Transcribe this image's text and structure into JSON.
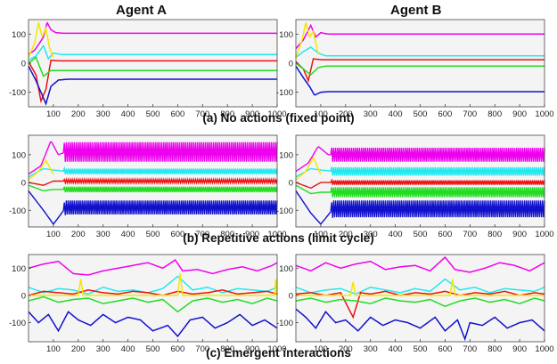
{
  "figure": {
    "columns": [
      "Agent A",
      "Agent B"
    ],
    "captions": [
      "(a) No actions (fixed point)",
      "(b) Repetitive actions (limit cycle)",
      "(c) Emergent interactions"
    ]
  },
  "colors": {
    "magenta": "#ee00ee",
    "cyan": "#22e8f0",
    "red": "#ee1111",
    "green": "#22dd22",
    "blue": "#1111cc",
    "yellow": "#f5e600"
  },
  "chart_data": [
    {
      "type": "line",
      "panel": "a",
      "agent": "Agent A",
      "xlim": [
        0,
        1000
      ],
      "ylim": [
        -150,
        150
      ],
      "xticks": [
        100,
        200,
        300,
        400,
        500,
        600,
        700,
        800,
        900,
        1000
      ],
      "yticks": [
        100,
        0,
        -100
      ],
      "series": [
        {
          "color": "magenta",
          "x": [
            0,
            25,
            45,
            60,
            75,
            90,
            110,
            140,
            1000
          ],
          "y": [
            30,
            45,
            70,
            90,
            140,
            115,
            105,
            103,
            103
          ]
        },
        {
          "color": "cyan",
          "x": [
            0,
            30,
            60,
            80,
            100,
            130,
            1000
          ],
          "y": [
            10,
            25,
            60,
            15,
            35,
            30,
            30
          ]
        },
        {
          "color": "red",
          "x": [
            0,
            30,
            50,
            70,
            90,
            120,
            1000
          ],
          "y": [
            5,
            -40,
            -130,
            -90,
            10,
            8,
            8
          ]
        },
        {
          "color": "green",
          "x": [
            0,
            30,
            60,
            90,
            120,
            1000
          ],
          "y": [
            0,
            20,
            -45,
            -25,
            -25,
            -25
          ]
        },
        {
          "color": "blue",
          "x": [
            0,
            30,
            55,
            70,
            90,
            120,
            160,
            1000
          ],
          "y": [
            -10,
            -60,
            -110,
            -140,
            -80,
            -58,
            -55,
            -55
          ]
        },
        {
          "color": "yellow",
          "x": [
            0,
            25,
            40,
            55,
            70,
            85,
            100
          ],
          "y": [
            20,
            70,
            140,
            90,
            120,
            50,
            20
          ]
        }
      ]
    },
    {
      "type": "line",
      "panel": "a",
      "agent": "Agent B",
      "xlim": [
        0,
        1000
      ],
      "ylim": [
        -150,
        150
      ],
      "xticks": [
        100,
        200,
        300,
        400,
        500,
        600,
        700,
        800,
        900,
        1000
      ],
      "yticks": [
        100,
        0,
        -100
      ],
      "series": [
        {
          "color": "magenta",
          "x": [
            0,
            30,
            60,
            80,
            100,
            130,
            1000
          ],
          "y": [
            50,
            80,
            130,
            90,
            105,
            100,
            100
          ]
        },
        {
          "color": "cyan",
          "x": [
            0,
            30,
            60,
            90,
            120,
            1000
          ],
          "y": [
            20,
            40,
            55,
            35,
            25,
            25
          ]
        },
        {
          "color": "red",
          "x": [
            0,
            30,
            50,
            70,
            100,
            1000
          ],
          "y": [
            5,
            -20,
            -60,
            15,
            12,
            12
          ]
        },
        {
          "color": "green",
          "x": [
            0,
            30,
            60,
            90,
            120,
            1000
          ],
          "y": [
            0,
            -20,
            -40,
            -15,
            -10,
            -10
          ]
        },
        {
          "color": "blue",
          "x": [
            0,
            30,
            55,
            75,
            100,
            130,
            1000
          ],
          "y": [
            -10,
            -50,
            -80,
            -110,
            -100,
            -98,
            -98
          ]
        },
        {
          "color": "yellow",
          "x": [
            0,
            25,
            40,
            55,
            70,
            90
          ],
          "y": [
            20,
            80,
            140,
            90,
            110,
            30
          ]
        }
      ]
    },
    {
      "type": "line",
      "panel": "b",
      "agent": "Agent A",
      "xlim": [
        0,
        1000
      ],
      "ylim": [
        -160,
        170
      ],
      "xticks": [
        100,
        200,
        300,
        400,
        500,
        600,
        700,
        800,
        900,
        1000
      ],
      "yticks": [
        100,
        0,
        -100
      ],
      "series": [
        {
          "color": "magenta",
          "x": [
            0,
            50,
            90,
            120,
            150,
            1000
          ],
          "y": [
            30,
            60,
            150,
            100,
            110,
            110
          ],
          "oscillation_amplitude": 35
        },
        {
          "color": "cyan",
          "x": [
            0,
            60,
            100,
            150,
            1000
          ],
          "y": [
            20,
            50,
            45,
            40,
            40
          ],
          "oscillation_amplitude": 10
        },
        {
          "color": "red",
          "x": [
            0,
            60,
            100,
            150,
            1000
          ],
          "y": [
            0,
            -10,
            5,
            5,
            5
          ],
          "oscillation_amplitude": 6
        },
        {
          "color": "green",
          "x": [
            0,
            60,
            100,
            150,
            1000
          ],
          "y": [
            -10,
            -30,
            -25,
            -25,
            -25
          ],
          "oscillation_amplitude": 10
        },
        {
          "color": "blue",
          "x": [
            0,
            60,
            100,
            150,
            1000
          ],
          "y": [
            -30,
            -100,
            -150,
            -90,
            -90
          ],
          "oscillation_amplitude": 25
        },
        {
          "color": "yellow",
          "x": [
            0,
            40,
            70,
            100
          ],
          "y": [
            10,
            40,
            80,
            30
          ]
        }
      ]
    },
    {
      "type": "line",
      "panel": "b",
      "agent": "Agent B",
      "xlim": [
        0,
        1000
      ],
      "ylim": [
        -160,
        170
      ],
      "xticks": [
        100,
        200,
        300,
        400,
        500,
        600,
        700,
        800,
        900,
        1000
      ],
      "yticks": [
        100,
        0,
        -100
      ],
      "series": [
        {
          "color": "magenta",
          "x": [
            0,
            50,
            90,
            130,
            1000
          ],
          "y": [
            40,
            70,
            130,
            100,
            100
          ],
          "oscillation_amplitude": 25
        },
        {
          "color": "cyan",
          "x": [
            0,
            60,
            100,
            150,
            1000
          ],
          "y": [
            20,
            50,
            45,
            40,
            40
          ],
          "oscillation_amplitude": 15
        },
        {
          "color": "red",
          "x": [
            0,
            60,
            100,
            150,
            1000
          ],
          "y": [
            0,
            -20,
            0,
            0,
            0
          ],
          "oscillation_amplitude": 8
        },
        {
          "color": "green",
          "x": [
            0,
            60,
            100,
            150,
            1000
          ],
          "y": [
            -10,
            -40,
            -35,
            -35,
            -35
          ],
          "oscillation_amplitude": 18
        },
        {
          "color": "blue",
          "x": [
            0,
            60,
            100,
            150,
            1000
          ],
          "y": [
            -30,
            -110,
            -150,
            -95,
            -95
          ],
          "oscillation_amplitude": 30
        },
        {
          "color": "yellow",
          "x": [
            0,
            40,
            70,
            100
          ],
          "y": [
            10,
            40,
            90,
            30
          ]
        }
      ]
    },
    {
      "type": "line",
      "panel": "c",
      "agent": "Agent A",
      "xlim": [
        0,
        1000
      ],
      "ylim": [
        -170,
        150
      ],
      "xticks": [
        100,
        200,
        300,
        400,
        500,
        600,
        700,
        800,
        900,
        1000
      ],
      "yticks": [
        100,
        0,
        -100
      ],
      "series": [
        {
          "color": "magenta",
          "x": [
            0,
            60,
            120,
            180,
            240,
            300,
            360,
            420,
            480,
            540,
            590,
            620,
            680,
            740,
            800,
            860,
            920,
            980,
            1000
          ],
          "y": [
            100,
            115,
            125,
            80,
            75,
            90,
            100,
            110,
            120,
            100,
            130,
            90,
            95,
            80,
            95,
            105,
            90,
            110,
            120
          ]
        },
        {
          "color": "cyan",
          "x": [
            0,
            60,
            120,
            180,
            240,
            300,
            360,
            420,
            480,
            540,
            600,
            660,
            720,
            780,
            840,
            900,
            960,
            1000
          ],
          "y": [
            30,
            10,
            25,
            20,
            5,
            30,
            15,
            20,
            10,
            25,
            70,
            20,
            30,
            10,
            25,
            20,
            15,
            30
          ]
        },
        {
          "color": "red",
          "x": [
            0,
            60,
            120,
            180,
            240,
            300,
            360,
            420,
            480,
            540,
            600,
            660,
            720,
            780,
            840,
            900,
            960,
            1000
          ],
          "y": [
            0,
            15,
            10,
            5,
            20,
            10,
            5,
            15,
            10,
            0,
            15,
            5,
            10,
            20,
            5,
            10,
            15,
            5
          ]
        },
        {
          "color": "green",
          "x": [
            0,
            60,
            120,
            180,
            240,
            300,
            360,
            420,
            480,
            540,
            600,
            660,
            720,
            780,
            840,
            900,
            960,
            1000
          ],
          "y": [
            -20,
            -5,
            -25,
            -15,
            -10,
            -30,
            -20,
            -10,
            -25,
            -15,
            -60,
            -20,
            -10,
            -25,
            -15,
            -30,
            -10,
            -20
          ]
        },
        {
          "color": "blue",
          "x": [
            0,
            40,
            80,
            120,
            160,
            200,
            250,
            300,
            350,
            400,
            450,
            500,
            560,
            600,
            650,
            700,
            750,
            800,
            850,
            900,
            950,
            1000
          ],
          "y": [
            -60,
            -100,
            -70,
            -130,
            -60,
            -90,
            -110,
            -70,
            -100,
            -80,
            -90,
            -130,
            -110,
            -150,
            -90,
            -80,
            -120,
            -100,
            -70,
            -110,
            -90,
            -120
          ]
        },
        {
          "color": "yellow",
          "x": [
            0,
            200,
            210,
            220,
            600,
            610,
            620,
            990,
            995,
            1000
          ],
          "y": [
            0,
            0,
            60,
            0,
            0,
            80,
            0,
            0,
            70,
            0
          ]
        }
      ]
    },
    {
      "type": "line",
      "panel": "c",
      "agent": "Agent B",
      "xlim": [
        0,
        1000
      ],
      "ylim": [
        -170,
        150
      ],
      "xticks": [
        100,
        200,
        300,
        400,
        500,
        600,
        700,
        800,
        900,
        1000
      ],
      "yticks": [
        100,
        0,
        -100
      ],
      "series": [
        {
          "color": "magenta",
          "x": [
            0,
            60,
            120,
            180,
            240,
            300,
            360,
            420,
            480,
            540,
            600,
            640,
            700,
            760,
            820,
            880,
            940,
            1000
          ],
          "y": [
            110,
            90,
            120,
            100,
            115,
            125,
            95,
            105,
            110,
            90,
            140,
            95,
            85,
            100,
            120,
            110,
            90,
            120
          ]
        },
        {
          "color": "cyan",
          "x": [
            0,
            60,
            120,
            180,
            240,
            300,
            360,
            420,
            480,
            540,
            600,
            660,
            720,
            780,
            840,
            900,
            960,
            1000
          ],
          "y": [
            30,
            10,
            20,
            25,
            5,
            30,
            20,
            10,
            25,
            15,
            60,
            20,
            30,
            10,
            25,
            20,
            15,
            30
          ]
        },
        {
          "color": "red",
          "x": [
            0,
            60,
            120,
            180,
            230,
            260,
            300,
            360,
            420,
            480,
            540,
            600,
            660,
            720,
            780,
            840,
            900,
            960,
            1000
          ],
          "y": [
            5,
            10,
            0,
            10,
            -80,
            10,
            5,
            15,
            0,
            10,
            5,
            15,
            0,
            10,
            5,
            15,
            0,
            10,
            5
          ]
        },
        {
          "color": "green",
          "x": [
            0,
            60,
            120,
            180,
            240,
            300,
            360,
            420,
            480,
            540,
            600,
            660,
            720,
            780,
            840,
            900,
            960,
            1000
          ],
          "y": [
            -20,
            -10,
            -25,
            -15,
            -20,
            -30,
            -10,
            -20,
            -25,
            -15,
            -40,
            -20,
            -10,
            -25,
            -15,
            -30,
            -10,
            -20
          ]
        },
        {
          "color": "blue",
          "x": [
            0,
            40,
            80,
            120,
            160,
            200,
            250,
            300,
            350,
            400,
            450,
            500,
            560,
            600,
            650,
            680,
            700,
            750,
            800,
            850,
            900,
            950,
            1000
          ],
          "y": [
            -50,
            -80,
            -120,
            -60,
            -100,
            -90,
            -130,
            -80,
            -110,
            -90,
            -100,
            -120,
            -80,
            -130,
            -90,
            -160,
            -100,
            -110,
            -80,
            -120,
            -100,
            -90,
            -130
          ]
        },
        {
          "color": "yellow",
          "x": [
            0,
            220,
            230,
            240,
            620,
            630,
            640,
            1000
          ],
          "y": [
            0,
            0,
            50,
            0,
            0,
            60,
            0,
            0
          ]
        }
      ]
    }
  ]
}
